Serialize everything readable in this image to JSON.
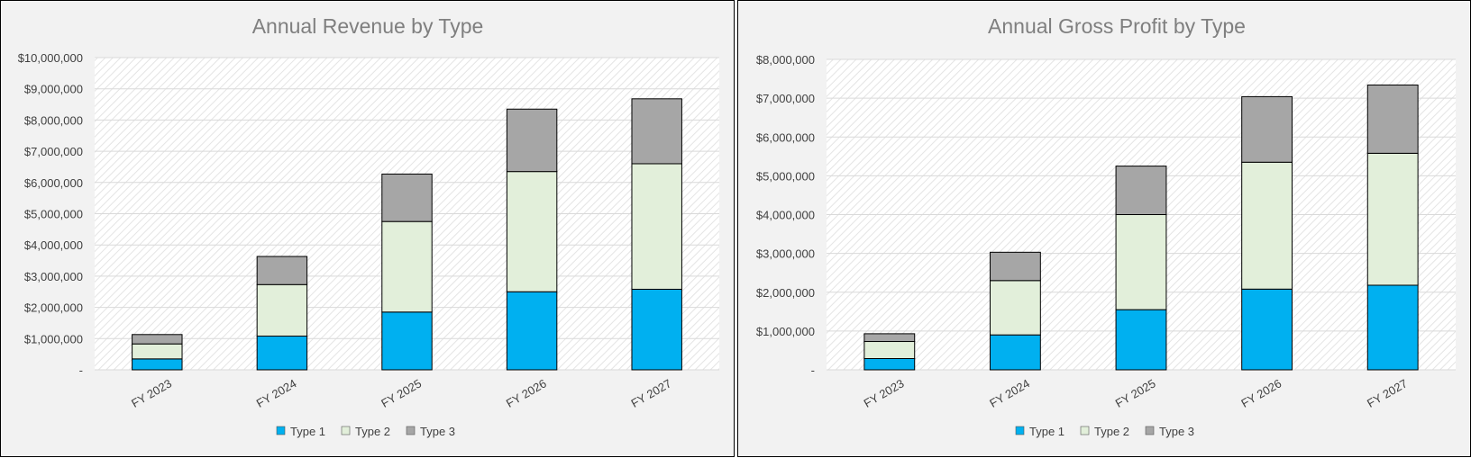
{
  "colors": {
    "series": [
      "#00b0f0",
      "#e2efda",
      "#a6a6a6"
    ],
    "bar_stroke": "#000000",
    "grid": "#d9d9d9",
    "panel_bg": "#f2f2f2",
    "title": "#7f7f7f",
    "text": "#404040"
  },
  "chart_data": [
    {
      "type": "bar",
      "stacked": true,
      "title": "Annual Revenue by Type",
      "categories": [
        "FY 2023",
        "FY 2024",
        "FY 2025",
        "FY 2026",
        "FY 2027"
      ],
      "series": [
        {
          "name": "Type 1",
          "values": [
            350000,
            1080000,
            1850000,
            2500000,
            2580000
          ]
        },
        {
          "name": "Type 2",
          "values": [
            480000,
            1650000,
            2900000,
            3850000,
            4020000
          ]
        },
        {
          "name": "Type 3",
          "values": [
            300000,
            900000,
            1520000,
            2000000,
            2080000
          ]
        }
      ],
      "ylim": [
        0,
        10000000
      ],
      "yticks": [
        "-",
        "$1,000,000",
        "$2,000,000",
        "$3,000,000",
        "$4,000,000",
        "$5,000,000",
        "$6,000,000",
        "$7,000,000",
        "$8,000,000",
        "$9,000,000",
        "$10,000,000"
      ],
      "grid": true,
      "legend": "bottom"
    },
    {
      "type": "bar",
      "stacked": true,
      "title": "Annual Gross Profit by Type",
      "categories": [
        "FY 2023",
        "FY 2024",
        "FY 2025",
        "FY 2026",
        "FY 2027"
      ],
      "series": [
        {
          "name": "Type 1",
          "values": [
            290000,
            900000,
            1550000,
            2080000,
            2180000
          ]
        },
        {
          "name": "Type 2",
          "values": [
            440000,
            1400000,
            2450000,
            3270000,
            3400000
          ]
        },
        {
          "name": "Type 3",
          "values": [
            200000,
            730000,
            1250000,
            1690000,
            1760000
          ]
        }
      ],
      "ylim": [
        0,
        8000000
      ],
      "yticks": [
        "-",
        "$1,000,000",
        "$2,000,000",
        "$3,000,000",
        "$4,000,000",
        "$5,000,000",
        "$6,000,000",
        "$7,000,000",
        "$8,000,000"
      ],
      "grid": true,
      "legend": "bottom"
    }
  ]
}
